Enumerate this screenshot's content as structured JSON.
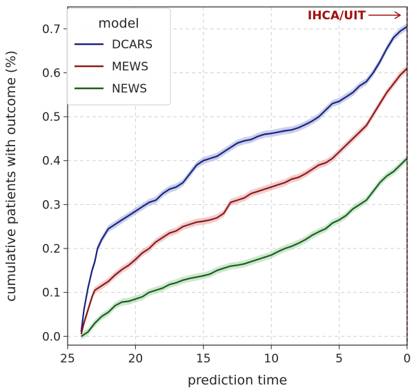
{
  "chart_data": {
    "type": "line",
    "xlabel": "prediction time",
    "ylabel": "cumulative patients with outcome (%)",
    "xlim": [
      25,
      0
    ],
    "ylim": [
      -0.02,
      0.75
    ],
    "xticks": [
      25,
      20,
      15,
      10,
      5,
      0
    ],
    "yticks": [
      0.0,
      0.1,
      0.2,
      0.3,
      0.4,
      0.5,
      0.6,
      0.7
    ],
    "xtick_labels": [
      "25",
      "20",
      "15",
      "10",
      "5",
      "0"
    ],
    "ytick_labels": [
      "0.0",
      "0.1",
      "0.2",
      "0.3",
      "0.4",
      "0.5",
      "0.6",
      "0.7"
    ],
    "grid": true,
    "legend": {
      "title": "model",
      "placement": "top-left",
      "entries": [
        "DCARS",
        "MEWS",
        "NEWS"
      ]
    },
    "annotation": {
      "text": "IHCA/UIT",
      "x": 0,
      "color": "#a01010"
    },
    "series": [
      {
        "name": "DCARS",
        "color": "#1a237e",
        "band_color": "#9fa8da",
        "x": [
          24,
          23.8,
          23.5,
          23.2,
          23,
          22.8,
          22.5,
          22.2,
          22,
          21.5,
          21,
          20.5,
          20,
          19.5,
          19,
          18.5,
          18,
          17.5,
          17,
          16.5,
          16,
          15.5,
          15,
          14.5,
          14,
          13.5,
          13,
          12.5,
          12,
          11.5,
          11,
          10.5,
          10,
          9.5,
          9,
          8.5,
          8,
          7.5,
          7,
          6.5,
          6,
          5.5,
          5,
          4.5,
          4,
          3.5,
          3,
          2.5,
          2,
          1.5,
          1,
          0.5,
          0
        ],
        "values": [
          0.01,
          0.06,
          0.11,
          0.15,
          0.17,
          0.2,
          0.22,
          0.235,
          0.245,
          0.255,
          0.265,
          0.275,
          0.285,
          0.295,
          0.305,
          0.31,
          0.325,
          0.335,
          0.34,
          0.35,
          0.37,
          0.39,
          0.4,
          0.405,
          0.41,
          0.42,
          0.43,
          0.44,
          0.445,
          0.448,
          0.455,
          0.46,
          0.462,
          0.465,
          0.468,
          0.47,
          0.475,
          0.482,
          0.49,
          0.5,
          0.515,
          0.53,
          0.535,
          0.545,
          0.555,
          0.57,
          0.58,
          0.6,
          0.625,
          0.655,
          0.68,
          0.695,
          0.705
        ]
      },
      {
        "name": "MEWS",
        "color": "#8b1a1a",
        "band_color": "#e8a3a3",
        "x": [
          24,
          23.8,
          23.5,
          23.2,
          23,
          22.5,
          22,
          21.5,
          21,
          20.5,
          20,
          19.5,
          19,
          18.5,
          18,
          17.5,
          17,
          16.5,
          16,
          15.5,
          15,
          14.5,
          14,
          13.5,
          13,
          12.5,
          12,
          11.5,
          11,
          10.5,
          10,
          9.5,
          9,
          8.5,
          8,
          7.5,
          7,
          6.5,
          6,
          5.5,
          5,
          4.5,
          4,
          3.5,
          3,
          2.5,
          2,
          1.5,
          1,
          0.5,
          0
        ],
        "values": [
          0.005,
          0.03,
          0.06,
          0.09,
          0.105,
          0.115,
          0.125,
          0.14,
          0.152,
          0.162,
          0.175,
          0.19,
          0.2,
          0.215,
          0.225,
          0.235,
          0.24,
          0.25,
          0.255,
          0.26,
          0.262,
          0.265,
          0.27,
          0.28,
          0.305,
          0.31,
          0.315,
          0.325,
          0.33,
          0.335,
          0.34,
          0.345,
          0.35,
          0.358,
          0.362,
          0.37,
          0.38,
          0.39,
          0.395,
          0.405,
          0.42,
          0.435,
          0.45,
          0.465,
          0.48,
          0.505,
          0.53,
          0.555,
          0.575,
          0.595,
          0.61
        ]
      },
      {
        "name": "NEWS",
        "color": "#1b5e20",
        "band_color": "#a5d6a7",
        "x": [
          24,
          23.5,
          23,
          22.5,
          22,
          21.5,
          21,
          20.5,
          20,
          19.5,
          19,
          18.5,
          18,
          17.5,
          17,
          16.5,
          16,
          15.5,
          15,
          14.5,
          14,
          13.5,
          13,
          12.5,
          12,
          11.5,
          11,
          10.5,
          10,
          9.5,
          9,
          8.5,
          8,
          7.5,
          7,
          6.5,
          6,
          5.5,
          5,
          4.5,
          4,
          3.5,
          3,
          2.5,
          2,
          1.5,
          1,
          0.5,
          0
        ],
        "values": [
          0.0,
          0.01,
          0.03,
          0.045,
          0.055,
          0.07,
          0.078,
          0.08,
          0.085,
          0.09,
          0.1,
          0.105,
          0.11,
          0.118,
          0.122,
          0.128,
          0.132,
          0.135,
          0.138,
          0.142,
          0.15,
          0.155,
          0.16,
          0.162,
          0.165,
          0.17,
          0.175,
          0.18,
          0.185,
          0.193,
          0.2,
          0.205,
          0.212,
          0.22,
          0.23,
          0.238,
          0.245,
          0.258,
          0.265,
          0.275,
          0.29,
          0.3,
          0.31,
          0.33,
          0.35,
          0.365,
          0.375,
          0.39,
          0.405
        ]
      }
    ]
  }
}
